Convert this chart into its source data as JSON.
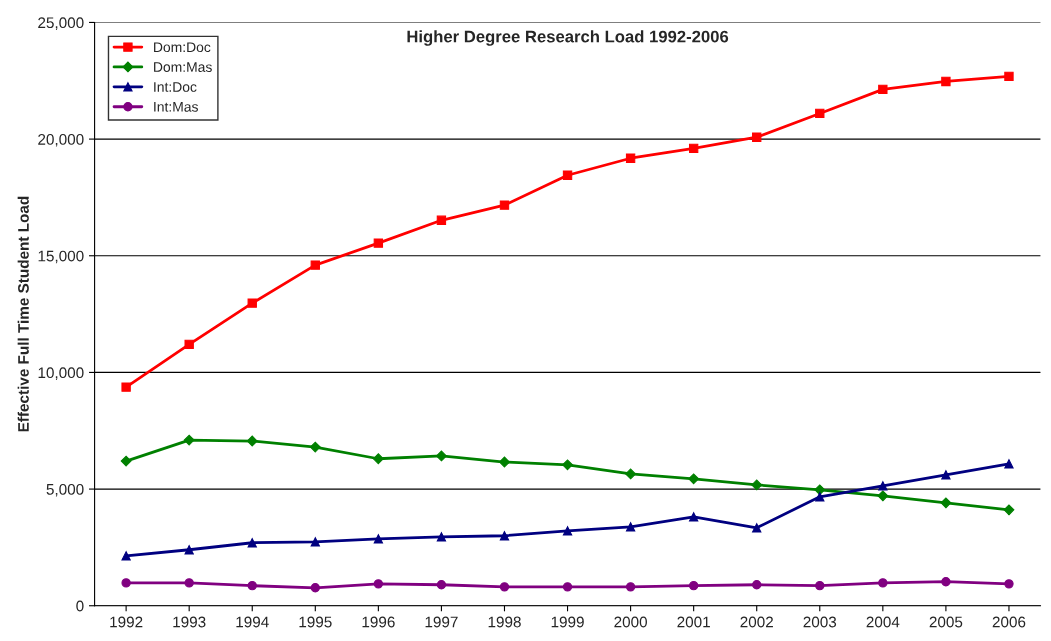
{
  "chart_data": {
    "type": "line",
    "title": "Higher Degree Research Load 1992-2006",
    "ylabel": "Effective Full Time Student Load",
    "categories": [
      "1992",
      "1993",
      "1994",
      "1995",
      "1996",
      "1997",
      "1998",
      "1999",
      "2000",
      "2001",
      "2002",
      "2003",
      "2004",
      "2005",
      "2006"
    ],
    "series": [
      {
        "name": "Dom:Doc",
        "color": "#ff0000",
        "marker": "square",
        "values": [
          9370,
          11200,
          12970,
          14600,
          15540,
          16520,
          17170,
          18450,
          19180,
          19600,
          20080,
          21100,
          22130,
          22470,
          22690
        ]
      },
      {
        "name": "Dom:Mas",
        "color": "#008000",
        "marker": "diamond",
        "values": [
          6200,
          7100,
          7060,
          6800,
          6300,
          6420,
          6160,
          6040,
          5650,
          5440,
          5180,
          4970,
          4710,
          4410,
          4110
        ]
      },
      {
        "name": "Int:Doc",
        "color": "#000080",
        "marker": "triangle",
        "values": [
          2140,
          2400,
          2700,
          2740,
          2870,
          2950,
          3000,
          3210,
          3380,
          3810,
          3340,
          4670,
          5140,
          5610,
          6080
        ]
      },
      {
        "name": "Int:Mas",
        "color": "#800080",
        "marker": "circle",
        "values": [
          980,
          980,
          860,
          770,
          940,
          900,
          810,
          810,
          810,
          860,
          900,
          860,
          980,
          1030,
          940
        ]
      }
    ],
    "ylim": [
      0,
      25000
    ],
    "yticks": [
      {
        "value": 0,
        "label": "0"
      },
      {
        "value": 5000,
        "label": "5,000"
      },
      {
        "value": 10000,
        "label": "10,000"
      },
      {
        "value": 15000,
        "label": "15,000"
      },
      {
        "value": 20000,
        "label": "20,000"
      },
      {
        "value": 25000,
        "label": "25,000"
      }
    ],
    "grid": "y",
    "legend": "top left",
    "line_style": "solid"
  }
}
